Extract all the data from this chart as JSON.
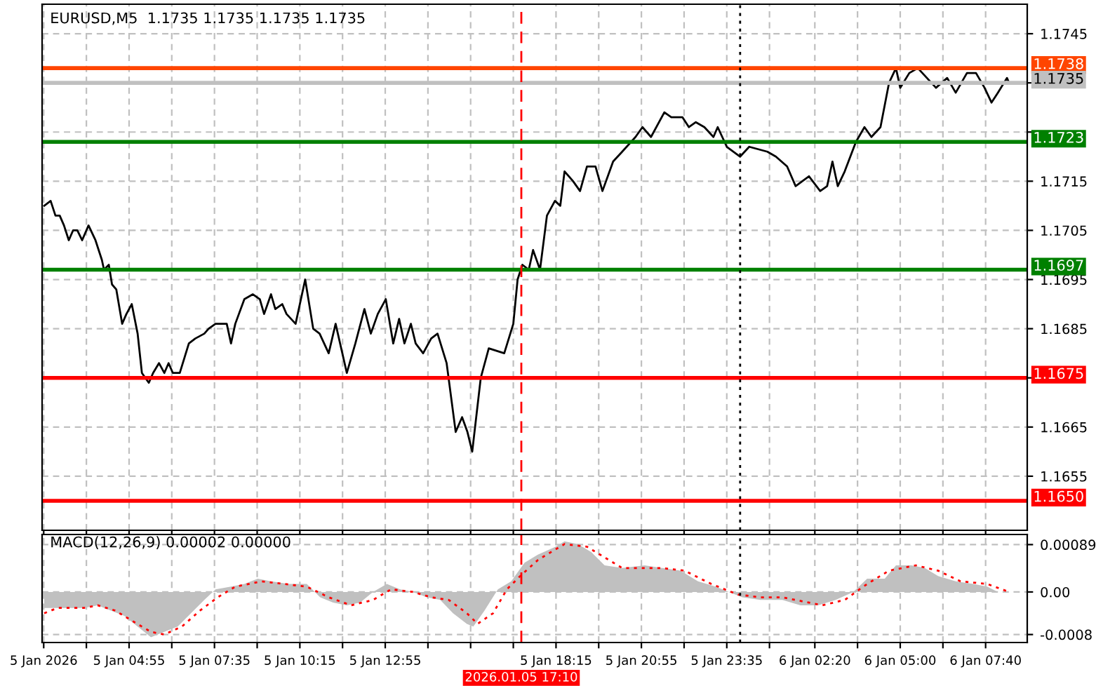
{
  "chart_data": [
    {
      "type": "line",
      "title": "EURUSD,M5  1.1735 1.1735 1.1735 1.1735",
      "tick_labels": "y",
      "grid": true,
      "line_style": "solid",
      "xlim": [
        "2026-01-05T02:12",
        "2026-01-06T08:58"
      ],
      "ylim": [
        1.1644,
        1.1751
      ],
      "xticks": [
        {
          "value": "2026-01-05T02:15",
          "label": null
        },
        {
          "value": "2026-01-05T03:35",
          "label": null
        },
        {
          "value": "2026-01-05T04:55",
          "label": null
        },
        {
          "value": "2026-01-05T06:15",
          "label": null
        },
        {
          "value": "2026-01-05T07:35",
          "label": null
        },
        {
          "value": "2026-01-05T08:55",
          "label": null
        },
        {
          "value": "2026-01-05T10:15",
          "label": null
        },
        {
          "value": "2026-01-05T11:35",
          "label": null
        },
        {
          "value": "2026-01-05T12:55",
          "label": null
        },
        {
          "value": "2026-01-05T14:15",
          "label": null
        },
        {
          "value": "2026-01-05T15:35",
          "label": null
        },
        {
          "value": "2026-01-05T16:55",
          "label": null
        },
        {
          "value": "2026-01-05T18:15",
          "label": null
        },
        {
          "value": "2026-01-05T19:35",
          "label": null
        },
        {
          "value": "2026-01-05T20:55",
          "label": null
        },
        {
          "value": "2026-01-05T22:15",
          "label": null
        },
        {
          "value": "2026-01-05T23:35",
          "label": null
        },
        {
          "value": "2026-01-06T00:55",
          "label": null
        },
        {
          "value": "2026-01-06T02:20",
          "label": null
        },
        {
          "value": "2026-01-06T03:40",
          "label": null
        },
        {
          "value": "2026-01-06T05:00",
          "label": null
        },
        {
          "value": "2026-01-06T06:20",
          "label": null
        },
        {
          "value": "2026-01-06T07:40",
          "label": null
        }
      ],
      "yticks": [
        1.1745,
        {
          "value": 1.1735,
          "label": null
        },
        {
          "value": 1.1725,
          "label": null
        },
        1.1715,
        1.1705,
        1.1695,
        1.1685,
        {
          "value": 1.1675,
          "label": null
        },
        1.1665,
        1.1655
      ],
      "ref_lines": [
        {
          "axis": "y",
          "value": 1.1738,
          "label": "1.1738",
          "color": "#ff4500"
        },
        {
          "axis": "y",
          "value": 1.1735,
          "label": "1.1735",
          "color": "#c0c0c0"
        },
        {
          "axis": "y",
          "value": 1.1723,
          "label": "1.1723",
          "color": "#008000"
        },
        {
          "axis": "y",
          "value": 1.1697,
          "label": "1.1697",
          "color": "#008000"
        },
        {
          "axis": "y",
          "value": 1.1675,
          "label": "1.1675",
          "color": "#ff0000"
        },
        {
          "axis": "y",
          "value": 1.165,
          "label": "1.1650",
          "color": "#ff0000"
        },
        {
          "axis": "x",
          "value": "2026-01-05T17:10",
          "color": "#ff0000",
          "line_style": "dashed"
        },
        {
          "axis": "x",
          "value": "2026-01-06T00:00",
          "color": "#000000",
          "line_style": "dotted"
        }
      ],
      "series": [
        {
          "color": "#000000",
          "x": [
            "2026-01-05T02:16",
            "2026-01-05T02:28",
            "2026-01-05T02:37",
            "2026-01-05T02:45",
            "2026-01-05T02:53",
            "2026-01-05T03:02",
            "2026-01-05T03:10",
            "2026-01-05T03:18",
            "2026-01-05T03:27",
            "2026-01-05T03:39",
            "2026-01-05T03:52",
            "2026-01-05T04:04",
            "2026-01-05T04:08",
            "2026-01-05T04:17",
            "2026-01-05T04:23",
            "2026-01-05T04:31",
            "2026-01-05T04:42",
            "2026-01-05T04:50",
            "2026-01-05T05:00",
            "2026-01-05T05:11",
            "2026-01-05T05:19",
            "2026-01-05T05:32",
            "2026-01-05T05:40",
            "2026-01-05T05:51",
            "2026-01-05T06:01",
            "2026-01-05T06:09",
            "2026-01-05T06:17",
            "2026-01-05T06:30",
            "2026-01-05T06:47",
            "2026-01-05T06:59",
            "2026-01-05T07:16",
            "2026-01-05T07:24",
            "2026-01-05T07:37",
            "2026-01-05T07:49",
            "2026-01-05T07:58",
            "2026-01-05T08:06",
            "2026-01-05T08:14",
            "2026-01-05T08:31",
            "2026-01-05T08:47",
            "2026-01-05T09:00",
            "2026-01-05T09:08",
            "2026-01-05T09:21",
            "2026-01-05T09:29",
            "2026-01-05T09:42",
            "2026-01-05T09:50",
            "2026-01-05T10:07",
            "2026-01-05T10:25",
            "2026-01-05T10:40",
            "2026-01-05T10:52",
            "2026-01-05T11:09",
            "2026-01-05T11:22",
            "2026-01-05T11:43",
            "2026-01-05T11:59",
            "2026-01-05T12:16",
            "2026-01-05T12:28",
            "2026-01-05T12:41",
            "2026-01-05T12:56",
            "2026-01-05T13:10",
            "2026-01-05T13:21",
            "2026-01-05T13:31",
            "2026-01-05T13:43",
            "2026-01-05T13:52",
            "2026-01-05T14:06",
            "2026-01-05T14:21",
            "2026-01-05T14:33",
            "2026-01-05T14:50",
            "2026-01-05T15:07",
            "2026-01-05T15:19",
            "2026-01-05T15:29",
            "2026-01-05T15:38",
            "2026-01-05T15:54",
            "2026-01-05T16:09",
            "2026-01-05T16:38",
            "2026-01-05T16:55",
            "2026-01-05T17:03",
            "2026-01-05T17:12",
            "2026-01-05T17:24",
            "2026-01-05T17:32",
            "2026-01-05T17:45",
            "2026-01-05T17:58",
            "2026-01-05T18:13",
            "2026-01-05T18:23",
            "2026-01-05T18:31",
            "2026-01-05T18:47",
            "2026-01-05T19:00",
            "2026-01-05T19:13",
            "2026-01-05T19:29",
            "2026-01-05T19:42",
            "2026-01-05T20:02",
            "2026-01-05T20:19",
            "2026-01-05T20:44",
            "2026-01-05T20:57",
            "2026-01-05T21:13",
            "2026-01-05T21:38",
            "2026-01-05T21:51",
            "2026-01-05T22:12",
            "2026-01-05T22:24",
            "2026-01-05T22:37",
            "2026-01-05T22:53",
            "2026-01-05T23:10",
            "2026-01-05T23:18",
            "2026-01-05T23:35",
            "2026-01-06T00:00",
            "2026-01-06T00:17",
            "2026-01-06T00:51",
            "2026-01-06T01:07",
            "2026-01-06T01:28",
            "2026-01-06T01:44",
            "2026-01-06T02:09",
            "2026-01-06T02:30",
            "2026-01-06T02:43",
            "2026-01-06T02:53",
            "2026-01-06T03:03",
            "2026-01-06T03:16",
            "2026-01-06T03:37",
            "2026-01-06T03:53",
            "2026-01-06T04:06",
            "2026-01-06T04:23",
            "2026-01-06T04:39",
            "2026-01-06T04:52",
            "2026-01-06T05:00",
            "2026-01-06T05:17",
            "2026-01-06T05:33",
            "2026-01-06T05:50",
            "2026-01-06T06:07",
            "2026-01-06T06:28",
            "2026-01-06T06:44",
            "2026-01-06T07:05",
            "2026-01-06T07:22",
            "2026-01-06T07:38",
            "2026-01-06T07:51",
            "2026-01-06T08:03",
            "2026-01-06T08:20",
            "2026-01-06T08:24"
          ],
          "values": [
            1.171,
            1.1711,
            1.1708,
            1.1708,
            1.1706,
            1.1703,
            1.1705,
            1.1705,
            1.1703,
            1.1706,
            1.1703,
            1.1699,
            1.1697,
            1.1698,
            1.1694,
            1.1693,
            1.1686,
            1.1688,
            1.169,
            1.1684,
            1.1676,
            1.1674,
            1.1676,
            1.1678,
            1.1676,
            1.1678,
            1.1676,
            1.1676,
            1.1682,
            1.1683,
            1.1684,
            1.1685,
            1.1686,
            1.1686,
            1.1686,
            1.1682,
            1.1686,
            1.1691,
            1.1692,
            1.1691,
            1.1688,
            1.1692,
            1.1689,
            1.169,
            1.1688,
            1.1686,
            1.1695,
            1.1685,
            1.1684,
            1.168,
            1.1686,
            1.1676,
            1.1682,
            1.1689,
            1.1684,
            1.1688,
            1.1691,
            1.1682,
            1.1687,
            1.1682,
            1.1686,
            1.1682,
            1.168,
            1.1683,
            1.1684,
            1.1678,
            1.1664,
            1.1667,
            1.1664,
            1.166,
            1.1675,
            1.1681,
            1.168,
            1.1686,
            1.1695,
            1.1698,
            1.1697,
            1.1701,
            1.1697,
            1.1708,
            1.1711,
            1.171,
            1.1717,
            1.1715,
            1.1713,
            1.1718,
            1.1718,
            1.1713,
            1.1719,
            1.1721,
            1.1724,
            1.1726,
            1.1724,
            1.1729,
            1.1728,
            1.1728,
            1.1726,
            1.1727,
            1.1726,
            1.1724,
            1.1726,
            1.1722,
            1.172,
            1.1722,
            1.1721,
            1.172,
            1.1718,
            1.1714,
            1.1716,
            1.1713,
            1.1714,
            1.1719,
            1.1714,
            1.1717,
            1.1723,
            1.1726,
            1.1724,
            1.1726,
            1.1735,
            1.1738,
            1.1734,
            1.1737,
            1.1738,
            1.1736,
            1.1734,
            1.1736,
            1.1733,
            1.1737,
            1.1737,
            1.1734,
            1.1731,
            1.1733,
            1.1736,
            1.1735
          ]
        }
      ]
    },
    {
      "type": "line",
      "title": "MACD(12,26,9) 0.00002 0.00000",
      "grid": true,
      "xlim": [
        "2026-01-05T02:12",
        "2026-01-06T08:58"
      ],
      "ylim": [
        -0.00095,
        0.00108
      ],
      "xticks": [
        {
          "value": "2026-01-05T02:15",
          "label": "5 Jan 2026"
        },
        {
          "value": "2026-01-05T03:35",
          "label": null
        },
        {
          "value": "2026-01-05T04:55",
          "label": "5 Jan 04:55"
        },
        {
          "value": "2026-01-05T06:15",
          "label": null
        },
        {
          "value": "2026-01-05T07:35",
          "label": "5 Jan 07:35"
        },
        {
          "value": "2026-01-05T08:55",
          "label": null
        },
        {
          "value": "2026-01-05T10:15",
          "label": "5 Jan 10:15"
        },
        {
          "value": "2026-01-05T11:35",
          "label": null
        },
        {
          "value": "2026-01-05T12:55",
          "label": "5 Jan 12:55"
        },
        {
          "value": "2026-01-05T14:15",
          "label": null
        },
        {
          "value": "2026-01-05T15:35",
          "label": null
        },
        {
          "value": "2026-01-05T16:55",
          "label": null
        },
        {
          "value": "2026-01-05T18:15",
          "label": "5 Jan 18:15"
        },
        {
          "value": "2026-01-05T19:35",
          "label": null
        },
        {
          "value": "2026-01-05T20:55",
          "label": "5 Jan 20:55"
        },
        {
          "value": "2026-01-05T22:15",
          "label": null
        },
        {
          "value": "2026-01-05T23:35",
          "label": "5 Jan 23:35"
        },
        {
          "value": "2026-01-06T00:55",
          "label": null
        },
        {
          "value": "2026-01-06T02:20",
          "label": "6 Jan 02:20"
        },
        {
          "value": "2026-01-06T03:40",
          "label": null
        },
        {
          "value": "2026-01-06T05:00",
          "label": "6 Jan 05:00"
        },
        {
          "value": "2026-01-06T06:20",
          "label": null
        },
        {
          "value": "2026-01-06T07:40",
          "label": "6 Jan 07:40"
        }
      ],
      "yticks": [
        0.00089,
        {
          "value": 0,
          "label": "0.00"
        },
        -0.0008
      ],
      "ref_lines": [
        {
          "axis": "x",
          "value": "2026-01-05T17:10",
          "label": "2026.01.05 17:10",
          "color": "#ff0000",
          "line_style": "dashed"
        },
        {
          "axis": "x",
          "value": "2026-01-06T00:00",
          "color": "#000000",
          "line_style": "dotted"
        }
      ],
      "series": [
        {
          "type": "area",
          "color": "#c0c0c0",
          "x": [
            "2026-01-05T02:16",
            "2026-01-05T02:41",
            "2026-01-05T03:31",
            "2026-01-05T03:56",
            "2026-01-05T04:21",
            "2026-01-05T04:46",
            "2026-01-05T05:11",
            "2026-01-05T05:36",
            "2026-01-05T06:01",
            "2026-01-05T06:26",
            "2026-01-05T06:51",
            "2026-01-05T07:16",
            "2026-01-05T07:37",
            "2026-01-05T08:06",
            "2026-01-05T08:31",
            "2026-01-05T08:56",
            "2026-01-05T09:21",
            "2026-01-05T09:54",
            "2026-01-05T10:28",
            "2026-01-05T10:53",
            "2026-01-05T11:17",
            "2026-01-05T11:43",
            "2026-01-05T12:08",
            "2026-01-05T12:32",
            "2026-01-05T12:58",
            "2026-01-05T13:23",
            "2026-01-05T13:47",
            "2026-01-05T14:13",
            "2026-01-05T14:38",
            "2026-01-05T15:02",
            "2026-01-05T15:28",
            "2026-01-05T15:40",
            "2026-01-05T16:01",
            "2026-01-05T16:26",
            "2026-01-05T16:51",
            "2026-01-05T17:16",
            "2026-01-05T17:41",
            "2026-01-05T18:14",
            "2026-01-05T18:31",
            "2026-01-05T18:56",
            "2026-01-05T19:21",
            "2026-01-05T19:46",
            "2026-01-05T20:19",
            "2026-01-05T21:01",
            "2026-01-05T21:34",
            "2026-01-05T22:08",
            "2026-01-05T22:41",
            "2026-01-05T23:14",
            "2026-01-05T23:39",
            "2026-01-06T00:04",
            "2026-01-06T00:38",
            "2026-01-06T01:19",
            "2026-01-06T01:53",
            "2026-01-06T02:26",
            "2026-01-06T02:59",
            "2026-01-06T03:32",
            "2026-01-06T03:58",
            "2026-01-06T04:31",
            "2026-01-06T04:52",
            "2026-01-06T05:21",
            "2026-01-06T05:46",
            "2026-01-06T06:11",
            "2026-01-06T06:44",
            "2026-01-06T07:17",
            "2026-01-06T07:43",
            "2026-01-06T08:03",
            "2026-01-06T08:13"
          ],
          "values": [
            -0.0003,
            -0.0003,
            -0.0003,
            -0.00025,
            -0.00035,
            -0.00045,
            -0.00065,
            -0.00085,
            -0.00075,
            -0.00065,
            -0.0004,
            -0.00015,
            5e-05,
            0.0001,
            0.00015,
            0.00025,
            0.0002,
            0.00015,
            0.00015,
            -0.0001,
            -0.0002,
            -0.00025,
            -0.0002,
            0,
            0.00015,
            5e-05,
            0,
            -0.0001,
            -0.00015,
            -0.0004,
            -0.0006,
            -0.00065,
            -0.00035,
            5e-05,
            0.0002,
            0.00055,
            0.0007,
            0.00085,
            0.00095,
            0.0009,
            0.00075,
            0.0005,
            0.00045,
            0.0005,
            0.00045,
            0.0004,
            0.0002,
            0.0001,
            0,
            -0.0001,
            -0.00015,
            -0.00015,
            -0.00025,
            -0.00025,
            -0.00015,
            0,
            0.00025,
            0.00025,
            0.0005,
            0.0005,
            0.00045,
            0.0003,
            0.0002,
            0.00015,
            0.0001,
            0,
            0
          ]
        },
        {
          "type": "line",
          "color": "#ff0000",
          "line_style": "dotted",
          "x": [
            "2026-01-05T02:16",
            "2026-01-05T02:41",
            "2026-01-05T03:31",
            "2026-01-05T03:56",
            "2026-01-05T04:29",
            "2026-01-05T05:02",
            "2026-01-05T05:36",
            "2026-01-05T06:01",
            "2026-01-05T06:34",
            "2026-01-05T07:08",
            "2026-01-05T07:41",
            "2026-01-05T08:14",
            "2026-01-05T09:04",
            "2026-01-05T09:46",
            "2026-01-05T10:28",
            "2026-01-05T11:09",
            "2026-01-05T11:51",
            "2026-01-05T12:32",
            "2026-01-05T13:06",
            "2026-01-05T13:47",
            "2026-01-05T14:21",
            "2026-01-05T14:54",
            "2026-01-05T15:28",
            "2026-01-05T15:48",
            "2026-01-05T16:17",
            "2026-01-05T16:43",
            "2026-01-05T17:08",
            "2026-01-05T17:41",
            "2026-01-05T18:14",
            "2026-01-05T18:31",
            "2026-01-05T19:13",
            "2026-01-05T19:46",
            "2026-01-05T20:19",
            "2026-01-05T21:34",
            "2026-01-05T22:16",
            "2026-01-05T23:06",
            "2026-01-05T23:56",
            "2026-01-06T00:38",
            "2026-01-06T01:19",
            "2026-01-06T02:09",
            "2026-01-06T02:34",
            "2026-01-06T03:16",
            "2026-01-06T03:58",
            "2026-01-06T04:39",
            "2026-01-06T05:29",
            "2026-01-06T06:11",
            "2026-01-06T06:53",
            "2026-01-06T07:43",
            "2026-01-06T08:24"
          ],
          "values": [
            -0.0004,
            -0.0003,
            -0.0003,
            -0.00025,
            -0.00035,
            -0.00055,
            -0.00075,
            -0.0008,
            -0.00065,
            -0.00035,
            -0.0001,
            0.0001,
            0.0002,
            0.00015,
            0.0001,
            -0.0001,
            -0.00025,
            -0.00015,
            5e-05,
            0,
            -0.0001,
            -0.00015,
            -0.0004,
            -0.0006,
            -0.0004,
            5e-05,
            0.0003,
            0.0006,
            0.0008,
            0.0009,
            0.00085,
            0.00065,
            0.00045,
            0.00045,
            0.0004,
            0.00015,
            -5e-05,
            -0.0001,
            -0.0001,
            -0.0002,
            -0.00025,
            -0.00015,
            0.00015,
            0.0004,
            0.0005,
            0.0004,
            0.0002,
            0.00015,
            0
          ]
        }
      ]
    }
  ]
}
